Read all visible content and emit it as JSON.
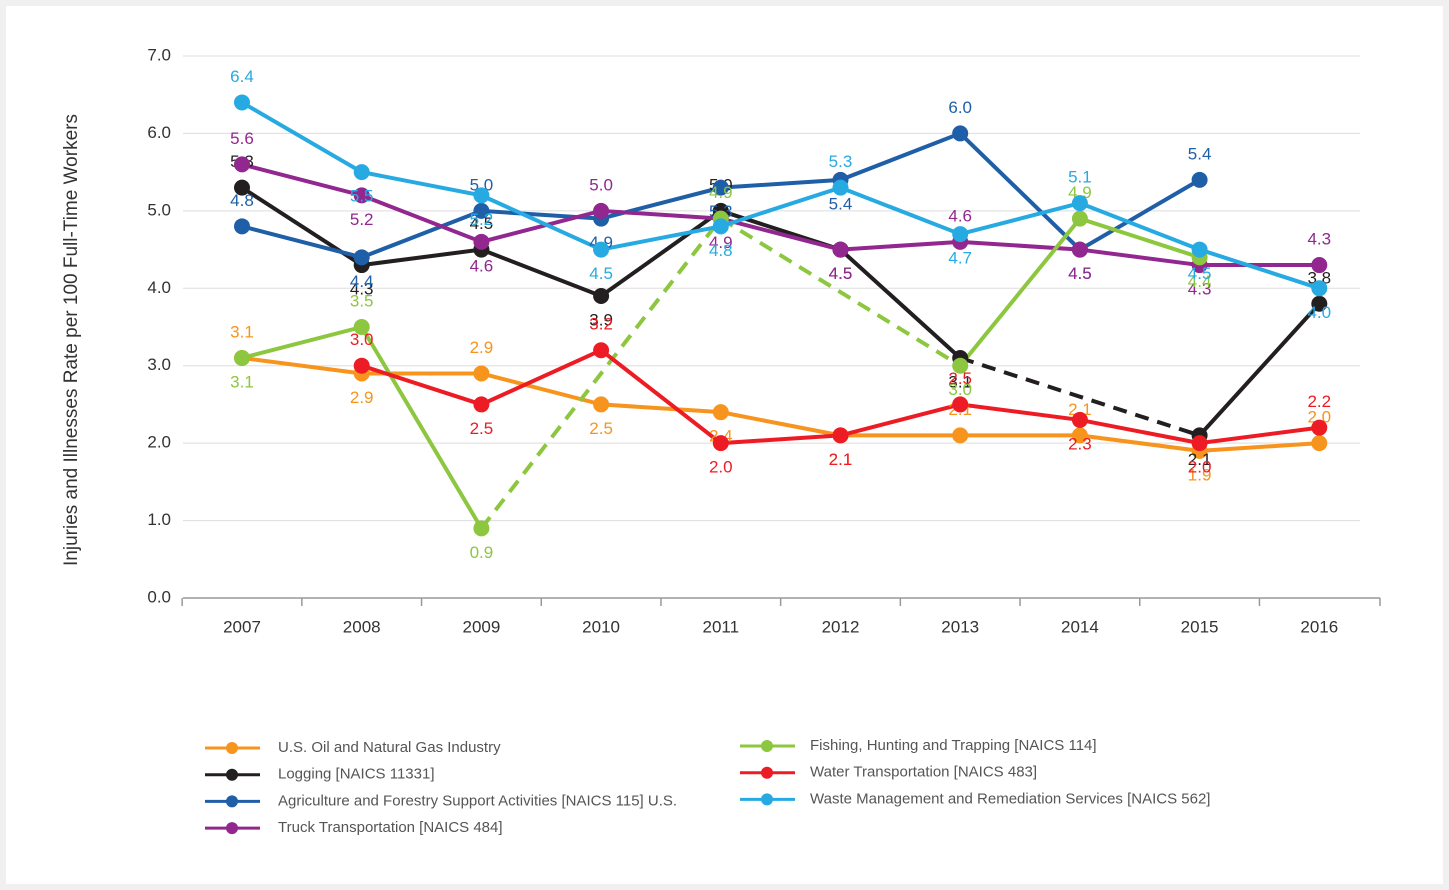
{
  "chart_data": {
    "type": "line",
    "y_label": "Injuries and Illnesses Rate per 100 Full-Time Workers",
    "categories": [
      "2007",
      "2008",
      "2009",
      "2010",
      "2011",
      "2012",
      "2013",
      "2014",
      "2015",
      "2016"
    ],
    "ylim": [
      0,
      7
    ],
    "yticks": [
      {
        "value": 0,
        "label": "0.0"
      },
      {
        "value": 1,
        "label": "1.0"
      },
      {
        "value": 2,
        "label": "2.0"
      },
      {
        "value": 3,
        "label": "3.0"
      },
      {
        "value": 4,
        "label": "4.0"
      },
      {
        "value": 5,
        "label": "5.0"
      },
      {
        "value": 6,
        "label": "6.0"
      },
      {
        "value": 7,
        "label": "7.0"
      }
    ],
    "grid": true,
    "gap_line": "dashed",
    "series": [
      {
        "name": "U.S. Oil and Natural Gas Industry",
        "color": "#f7941d",
        "values": [
          3.1,
          2.9,
          2.9,
          2.5,
          2.4,
          2.1,
          2.1,
          2.1,
          1.9,
          2.0
        ],
        "value_labels": [
          "3.1",
          "2.9",
          "2.9",
          "2.5",
          "2.4",
          "2.1",
          "2.1",
          "2.1",
          "1.9",
          "2.0"
        ]
      },
      {
        "name": "Logging [NAICS 11331]",
        "color": "#231f20",
        "values": [
          5.3,
          4.3,
          4.5,
          3.9,
          5.0,
          4.5,
          3.1,
          null,
          2.1,
          3.8
        ],
        "value_labels": [
          "5.3",
          "4.3",
          "4.5",
          "3.9",
          "5.0",
          "4.5",
          "3.1",
          null,
          "2.1",
          "3.8"
        ]
      },
      {
        "name": "Agriculture and Forestry Support Activities [NAICS 115] U.S.",
        "color": "#1f5fa8",
        "values": [
          4.8,
          4.4,
          5.0,
          4.9,
          5.3,
          5.4,
          6.0,
          4.5,
          5.4,
          null
        ],
        "value_labels": [
          "4.8",
          "4.4",
          "5.0",
          "4.9",
          "5.3",
          "5.4",
          "6.0",
          "4.5",
          "5.4",
          null
        ]
      },
      {
        "name": "Truck Transportation [NAICS 484]",
        "color": "#92278f",
        "values": [
          5.6,
          5.2,
          4.6,
          5.0,
          4.9,
          4.5,
          4.6,
          4.5,
          4.3,
          4.3
        ],
        "value_labels": [
          "5.6",
          "5.2",
          "4.6",
          "5.0",
          "4.9",
          "4.5",
          "4.6",
          "4.5",
          "4.3",
          "4.3"
        ]
      },
      {
        "name": "Fishing, Hunting and Trapping [NAICS 114]",
        "color": "#8dc63f",
        "values": [
          3.1,
          3.5,
          0.9,
          null,
          4.9,
          null,
          3.0,
          4.9,
          4.4,
          null
        ],
        "value_labels": [
          "3.1",
          "3.5",
          "0.9",
          null,
          "4.9",
          null,
          "3.0",
          "4.9",
          "4.4",
          null
        ]
      },
      {
        "name": "Water Transportation [NAICS 483]",
        "color": "#ed1c24",
        "values": [
          null,
          3.0,
          2.5,
          3.2,
          2.0,
          2.1,
          2.5,
          2.3,
          2.0,
          2.2
        ],
        "value_labels": [
          null,
          "3.0",
          "2.5",
          "3.2",
          "2.0",
          "2.1",
          "2.5",
          "2.3",
          "2.0",
          "2.2"
        ]
      },
      {
        "name": "Waste Management and Remediation Services [NAICS 562]",
        "color": "#27aae1",
        "values": [
          6.4,
          5.5,
          5.2,
          4.5,
          4.8,
          5.3,
          4.7,
          5.1,
          4.5,
          4.0
        ],
        "value_labels": [
          "6.4",
          "5.5",
          "5.2",
          "4.5",
          "4.8",
          "5.3",
          "4.7",
          "5.1",
          "4.5",
          "4.0"
        ]
      }
    ]
  }
}
